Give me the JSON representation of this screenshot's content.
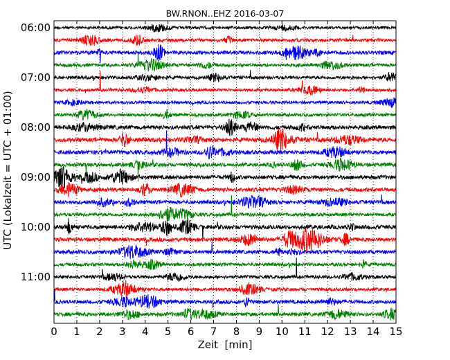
{
  "chart_data": {
    "type": "line",
    "title": "BW.RNON..EHZ 2016-03-07",
    "xlabel": "Zeit  [min]",
    "ylabel": "UTC (Lokalzeit = UTC + 01:00)",
    "xlim": [
      0,
      15
    ],
    "x_ticks": [
      "0",
      "1",
      "2",
      "3",
      "4",
      "5",
      "6",
      "7",
      "8",
      "9",
      "10",
      "11",
      "12",
      "13",
      "14",
      "15"
    ],
    "y_tick_labels": [
      "06:00",
      "07:00",
      "08:00",
      "09:00",
      "10:00",
      "11:00"
    ],
    "row_interval_min": 15,
    "first_row": "06:00",
    "row_count": 24,
    "color_cycle": [
      "#000000",
      "#ff0000",
      "#0000ff",
      "#008000"
    ],
    "vertical_grid": "dotted",
    "row_activity": [
      0.15,
      0.35,
      0.45,
      0.35,
      0.3,
      0.25,
      0.2,
      0.3,
      0.6,
      0.6,
      0.55,
      0.5,
      0.55,
      0.55,
      0.5,
      0.35,
      0.6,
      0.55,
      0.5,
      0.35,
      0.3,
      0.35,
      0.45,
      0.45
    ]
  }
}
